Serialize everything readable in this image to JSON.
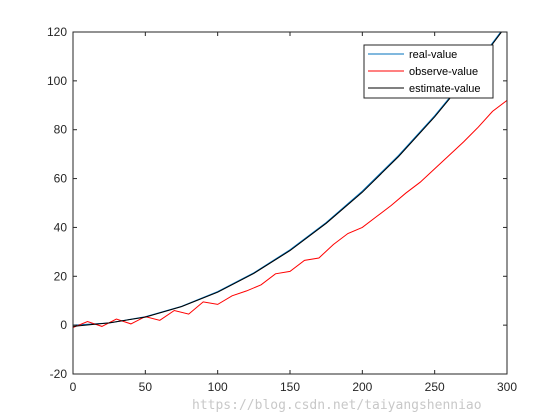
{
  "chart_data": {
    "type": "line",
    "title": "",
    "xlabel": "",
    "ylabel": "",
    "xlim": [
      0,
      300
    ],
    "ylim": [
      -20,
      120
    ],
    "xticks": [
      0,
      50,
      100,
      150,
      200,
      250,
      300
    ],
    "yticks": [
      -20,
      0,
      20,
      40,
      60,
      80,
      100,
      120
    ],
    "grid": false,
    "legend_position": "top-right",
    "series": [
      {
        "name": "real-value",
        "color": "#0072BD",
        "x": [
          0,
          25,
          50,
          75,
          100,
          125,
          150,
          175,
          200,
          225,
          250,
          275,
          300
        ],
        "y": [
          0.0,
          0.87,
          3.44,
          7.72,
          13.72,
          21.44,
          30.86,
          42.0,
          54.86,
          69.43,
          85.72,
          103.72,
          123.43
        ]
      },
      {
        "name": "observe-value",
        "color": "#FF0000",
        "x": [
          0,
          10,
          20,
          30,
          40,
          50,
          60,
          70,
          80,
          90,
          100,
          110,
          120,
          130,
          140,
          150,
          160,
          170,
          180,
          190,
          200,
          210,
          220,
          230,
          240,
          250,
          260,
          270,
          280,
          290,
          300
        ],
        "y": [
          -1,
          1.5,
          -0.5,
          2.5,
          0.5,
          3.5,
          2.0,
          6.0,
          4.5,
          9.5,
          8.5,
          12.0,
          14.0,
          16.5,
          21.0,
          22.0,
          26.5,
          27.5,
          33.0,
          37.5,
          40.0,
          44.5,
          49.0,
          54.0,
          58.5,
          64.0,
          69.5,
          75.0,
          81.0,
          87.5,
          92.0
        ]
      },
      {
        "name": "estimate-value",
        "color": "#000000",
        "x": [
          0,
          25,
          50,
          75,
          100,
          125,
          150,
          175,
          200,
          225,
          250,
          275,
          300
        ],
        "y": [
          -0.5,
          0.9,
          3.3,
          7.6,
          13.5,
          21.2,
          30.5,
          41.7,
          54.4,
          69.0,
          85.3,
          103.2,
          123.0
        ]
      }
    ]
  },
  "watermark": "https://blog.csdn.net/taiyangshenniao"
}
